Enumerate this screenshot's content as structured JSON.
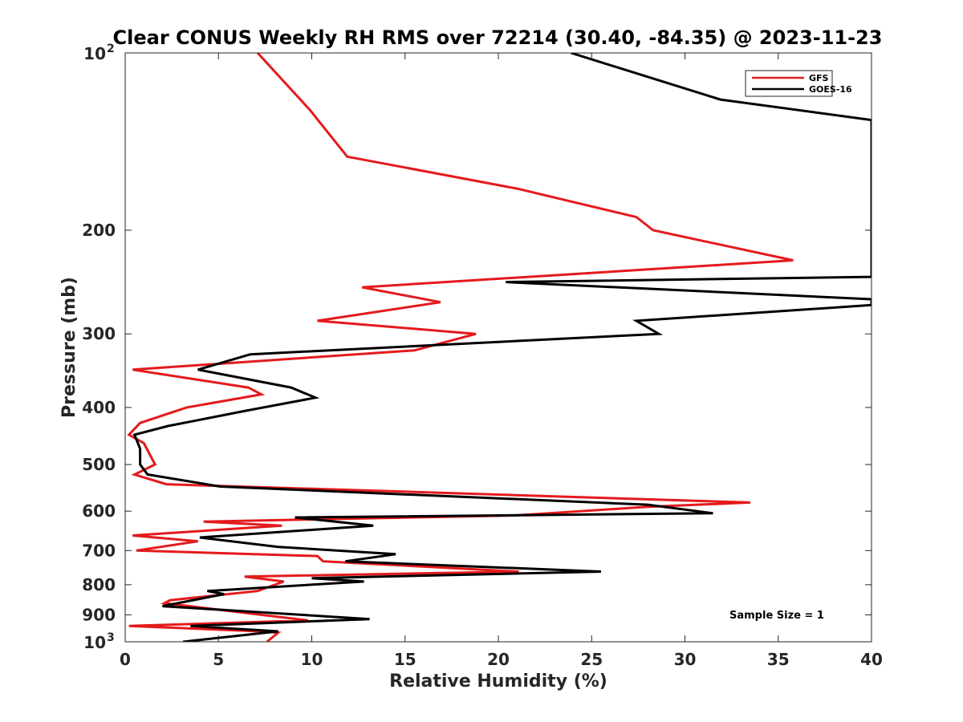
{
  "chart_data": {
    "type": "line",
    "title": "Clear CONUS Weekly RH RMS over 72214 (30.40, -84.35) @ 2023-11-23",
    "xlabel": "Relative Humidity (%)",
    "ylabel": "Pressure (mb)",
    "xlim": [
      0,
      40
    ],
    "ylim": [
      100,
      1000
    ],
    "yscale": "log",
    "yreversed": true,
    "x_ticks": [
      0,
      5,
      10,
      15,
      20,
      25,
      30,
      35,
      40
    ],
    "x_tick_labels": [
      "0",
      "5",
      "10",
      "15",
      "20",
      "25",
      "30",
      "35",
      "40"
    ],
    "y_ticks": [
      100,
      200,
      300,
      400,
      500,
      600,
      700,
      800,
      900,
      1000
    ],
    "y_tick_labels": [
      {
        "base": "10",
        "sup": "2"
      },
      {
        "base": "200"
      },
      {
        "base": "300"
      },
      {
        "base": "400"
      },
      {
        "base": "500"
      },
      {
        "base": "600"
      },
      {
        "base": "700"
      },
      {
        "base": "800"
      },
      {
        "base": "900"
      },
      {
        "base": "10",
        "sup": "3"
      }
    ],
    "legend_position": "top-right",
    "annotation": "Sample Size = 1",
    "series": [
      {
        "name": "GFS",
        "color": "#e41a1c",
        "points": [
          [
            7.1,
            100
          ],
          [
            9.9,
            125
          ],
          [
            11.9,
            150
          ],
          [
            21.0,
            170
          ],
          [
            27.4,
            190
          ],
          [
            28.3,
            200
          ],
          [
            35.8,
            225
          ],
          [
            12.7,
            250
          ],
          [
            16.9,
            265
          ],
          [
            10.3,
            285
          ],
          [
            18.8,
            300
          ],
          [
            15.5,
            320
          ],
          [
            0.4,
            345
          ],
          [
            6.6,
            370
          ],
          [
            7.3,
            380
          ],
          [
            3.3,
            400
          ],
          [
            0.8,
            425
          ],
          [
            0.2,
            445
          ],
          [
            1.0,
            460
          ],
          [
            1.6,
            500
          ],
          [
            0.5,
            520
          ],
          [
            2.2,
            540
          ],
          [
            33.5,
            580
          ],
          [
            28.0,
            590
          ],
          [
            21.0,
            610
          ],
          [
            4.2,
            625
          ],
          [
            8.4,
            635
          ],
          [
            0.4,
            660
          ],
          [
            3.9,
            675
          ],
          [
            0.6,
            700
          ],
          [
            10.3,
            715
          ],
          [
            10.6,
            730
          ],
          [
            21.1,
            760
          ],
          [
            6.4,
            775
          ],
          [
            8.5,
            790
          ],
          [
            7.1,
            820
          ],
          [
            2.4,
            850
          ],
          [
            2.1,
            860
          ],
          [
            9.8,
            920
          ],
          [
            0.2,
            940
          ],
          [
            7.2,
            960
          ],
          [
            8.2,
            965
          ],
          [
            7.6,
            1000
          ]
        ]
      },
      {
        "name": "GOES-16",
        "color": "#000000",
        "points": [
          [
            23.9,
            100
          ],
          [
            31.9,
            120
          ],
          [
            40.0,
            130
          ],
          [
            40.0,
            240
          ],
          [
            20.4,
            245
          ],
          [
            40.0,
            262
          ],
          [
            40.0,
            268
          ],
          [
            27.4,
            285
          ],
          [
            28.6,
            300
          ],
          [
            6.7,
            325
          ],
          [
            3.9,
            345
          ],
          [
            8.9,
            370
          ],
          [
            10.2,
            385
          ],
          [
            6.5,
            405
          ],
          [
            2.3,
            430
          ],
          [
            0.5,
            445
          ],
          [
            0.8,
            470
          ],
          [
            0.8,
            500
          ],
          [
            1.2,
            520
          ],
          [
            5.1,
            545
          ],
          [
            28.0,
            585
          ],
          [
            31.5,
            605
          ],
          [
            9.1,
            615
          ],
          [
            13.3,
            635
          ],
          [
            4.0,
            665
          ],
          [
            8.2,
            690
          ],
          [
            14.5,
            710
          ],
          [
            11.8,
            730
          ],
          [
            25.5,
            760
          ],
          [
            10.0,
            780
          ],
          [
            12.8,
            790
          ],
          [
            4.4,
            820
          ],
          [
            5.3,
            830
          ],
          [
            2.0,
            870
          ],
          [
            13.1,
            915
          ],
          [
            3.5,
            940
          ],
          [
            8.2,
            960
          ],
          [
            3.1,
            1000
          ]
        ]
      }
    ]
  }
}
